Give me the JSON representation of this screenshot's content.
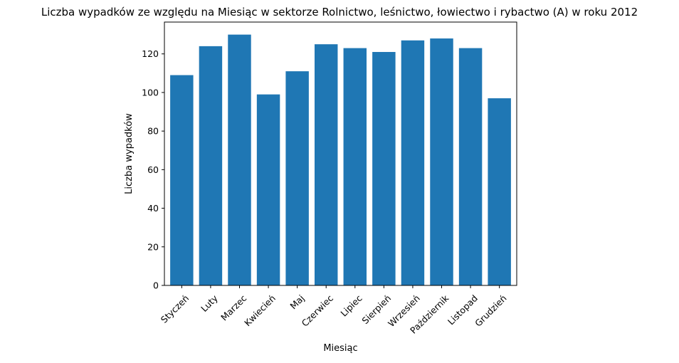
{
  "chart_data": {
    "type": "bar",
    "title": "Liczba wypadków ze względu na Miesiąc w sektorze Rolnictwo, leśnictwo, łowiectwo i rybactwo (A) w roku 2012",
    "xlabel": "Miesiąc",
    "ylabel": "Liczba wypadków",
    "categories": [
      "Styczeń",
      "Luty",
      "Marzec",
      "Kwiecień",
      "Maj",
      "Czerwiec",
      "Lipiec",
      "Sierpień",
      "Wrzesień",
      "Październik",
      "Listopad",
      "Grudzień"
    ],
    "values": [
      109,
      124,
      130,
      99,
      111,
      125,
      123,
      121,
      127,
      128,
      123,
      97
    ],
    "ylim": [
      0,
      136.5
    ],
    "yticks": [
      0,
      20,
      40,
      60,
      80,
      100,
      120
    ],
    "grid": false,
    "bar_color": "#1f77b4"
  }
}
